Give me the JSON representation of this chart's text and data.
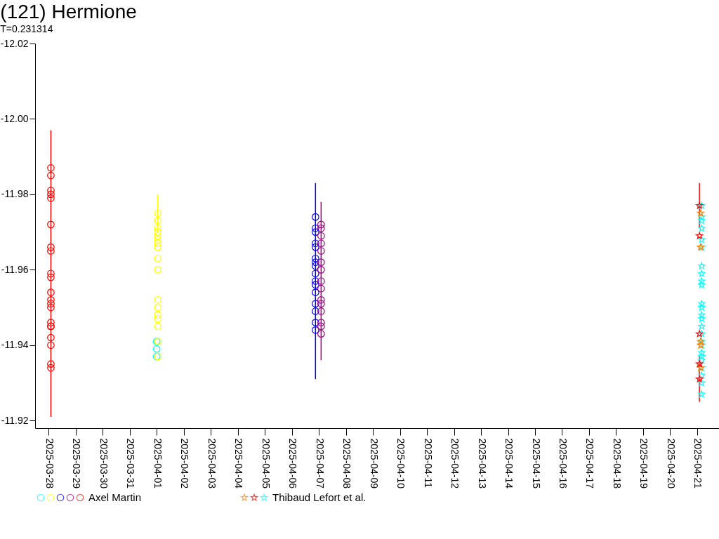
{
  "chart_data": {
    "type": "scatter",
    "title": "(121) Hermione",
    "subtitle": "T=0.231314",
    "xlim": [
      "2025-03-27T12:00",
      "2025-04-21T20:00"
    ],
    "xticks": [
      "2025-03-28",
      "2025-03-29",
      "2025-03-30",
      "2025-03-31",
      "2025-04-01",
      "2025-04-02",
      "2025-04-03",
      "2025-04-04",
      "2025-04-05",
      "2025-04-06",
      "2025-04-07",
      "2025-04-08",
      "2025-04-09",
      "2025-04-10",
      "2025-04-11",
      "2025-04-12",
      "2025-04-13",
      "2025-04-14",
      "2025-04-15",
      "2025-04-16",
      "2025-04-17",
      "2025-04-18",
      "2025-04-19",
      "2025-04-20",
      "2025-04-21"
    ],
    "ylim": [
      -11.918,
      -12.02
    ],
    "yticks": [
      -12.02,
      {
        "value": -12,
        "label": "-12.00"
      },
      -11.98,
      -11.96,
      -11.94,
      -11.92
    ],
    "grid": false,
    "legend": "bottom",
    "series": [
      {
        "name": "Axel Martin",
        "color": "#ff0000",
        "marker": "circle",
        "x": [
          "2025-03-28T02:00",
          "2025-03-28T02:00",
          "2025-03-28T02:00",
          "2025-03-28T02:00",
          "2025-03-28T02:00",
          "2025-03-28T02:00",
          "2025-03-28T02:00",
          "2025-03-28T02:00",
          "2025-03-28T02:00",
          "2025-03-28T02:00",
          "2025-03-28T02:00",
          "2025-03-28T02:00",
          "2025-03-28T02:00",
          "2025-03-28T02:00",
          "2025-03-28T02:00",
          "2025-03-28T02:00",
          "2025-03-28T02:00",
          "2025-03-28T02:00",
          "2025-03-28T02:00",
          "2025-03-28T02:00",
          "2025-03-28T02:00",
          "2025-04-01T00:00",
          "2025-04-01T00:00",
          "2025-04-01T00:00",
          "2025-04-01T01:00",
          "2025-04-01T01:00",
          "2025-04-01T01:00",
          "2025-04-01T01:00",
          "2025-04-01T01:00",
          "2025-04-01T01:00",
          "2025-04-01T01:00",
          "2025-04-01T01:00",
          "2025-04-01T01:00",
          "2025-04-01T01:00",
          "2025-04-01T01:00",
          "2025-04-01T01:00",
          "2025-04-01T01:00",
          "2025-04-01T01:00",
          "2025-04-01T01:00",
          "2025-04-01T01:00",
          "2025-04-01T01:00",
          "2025-04-06T21:00",
          "2025-04-06T21:00",
          "2025-04-06T21:00",
          "2025-04-06T21:00",
          "2025-04-06T21:00",
          "2025-04-06T21:00",
          "2025-04-06T21:00",
          "2025-04-06T21:00",
          "2025-04-06T21:00",
          "2025-04-06T21:00",
          "2025-04-06T21:00",
          "2025-04-06T21:00",
          "2025-04-06T21:00",
          "2025-04-06T21:00",
          "2025-04-06T21:00",
          "2025-04-06T21:00",
          "2025-04-07T02:00",
          "2025-04-07T02:00",
          "2025-04-07T02:00",
          "2025-04-07T02:00",
          "2025-04-07T02:00",
          "2025-04-07T02:00",
          "2025-04-07T02:00",
          "2025-04-07T02:00",
          "2025-04-07T02:00",
          "2025-04-07T02:00",
          "2025-04-07T02:00",
          "2025-04-07T02:00",
          "2025-04-07T02:00",
          "2025-04-07T02:00",
          "2025-04-07T02:00"
        ],
        "values": [
          -11.987,
          -11.985,
          -11.981,
          -11.98,
          -11.979,
          -11.972,
          -11.966,
          -11.965,
          -11.959,
          -11.958,
          -11.954,
          -11.952,
          -11.951,
          -11.95,
          -11.946,
          -11.945,
          -11.945,
          -11.942,
          -11.94,
          -11.935,
          -11.934,
          -11.941,
          -11.939,
          -11.937,
          -11.975,
          -11.973,
          -11.971,
          -11.97,
          -11.969,
          -11.968,
          -11.967,
          -11.966,
          -11.963,
          -11.96,
          -11.952,
          -11.95,
          -11.948,
          -11.947,
          -11.945,
          -11.941,
          -11.937,
          -11.974,
          -11.971,
          -11.97,
          -11.967,
          -11.966,
          -11.963,
          -11.962,
          -11.961,
          -11.959,
          -11.957,
          -11.956,
          -11.954,
          -11.951,
          -11.949,
          -11.946,
          -11.944,
          -11.972,
          -11.971,
          -11.969,
          -11.967,
          -11.965,
          -11.962,
          -11.96,
          -11.957,
          -11.955,
          -11.952,
          -11.951,
          -11.949,
          -11.946,
          -11.945,
          -11.943
        ],
        "errors": [
          null,
          null,
          null,
          null,
          null,
          null,
          null,
          null,
          0.038,
          null,
          null,
          null,
          null,
          null,
          null,
          null,
          null,
          null,
          null,
          null,
          null,
          null,
          null,
          null,
          0.005,
          null,
          null,
          null,
          null,
          null,
          null,
          null,
          null,
          null,
          null,
          null,
          null,
          null,
          null,
          null,
          null,
          null,
          null,
          null,
          null,
          null,
          null,
          null,
          null,
          null,
          0.026,
          null,
          null,
          null,
          null,
          null,
          null,
          null,
          null,
          null,
          null,
          null,
          null,
          null,
          0.021,
          null,
          null,
          null,
          null,
          null,
          null,
          null
        ],
        "colors": [
          "#ff0000",
          "#ff0000",
          "#ff0000",
          "#ff0000",
          "#ff0000",
          "#ff0000",
          "#ff0000",
          "#ff0000",
          "#ff0000",
          "#ff0000",
          "#ff0000",
          "#ff0000",
          "#ff0000",
          "#ff0000",
          "#ff0000",
          "#ff0000",
          "#ff0000",
          "#ff0000",
          "#ff0000",
          "#ff0000",
          "#ff0000",
          "#00ffff",
          "#00ffff",
          "#00ffff",
          "#ffff00",
          "#ffff00",
          "#ffff00",
          "#ffff00",
          "#ffff00",
          "#ffff00",
          "#ffff00",
          "#ffff00",
          "#ffff00",
          "#ffff00",
          "#ffff00",
          "#ffff00",
          "#ffff00",
          "#ffff00",
          "#ffff00",
          "#ffff00",
          "#ffff00",
          "#0000ff",
          "#0000ff",
          "#0000ff",
          "#0000ff",
          "#0000ff",
          "#0000ff",
          "#0000ff",
          "#0000ff",
          "#0000ff",
          "#0000ff",
          "#0000ff",
          "#0000ff",
          "#0000ff",
          "#0000ff",
          "#0000ff",
          "#0000ff",
          "#a4007f",
          "#a4007f",
          "#a4007f",
          "#a4007f",
          "#a4007f",
          "#a4007f",
          "#a4007f",
          "#a4007f",
          "#a4007f",
          "#a4007f",
          "#a4007f",
          "#a4007f",
          "#a4007f",
          "#a4007f",
          "#a4007f"
        ]
      },
      {
        "name": "Thibaud Lefort et al.",
        "color": "#00ffff",
        "marker": "star",
        "x": [
          "2025-04-21T04:00",
          "2025-04-21T04:00",
          "2025-04-21T04:00",
          "2025-04-21T04:00",
          "2025-04-21T04:00",
          "2025-04-21T04:00",
          "2025-04-21T04:00",
          "2025-04-21T04:00",
          "2025-04-21T04:00",
          "2025-04-21T04:00",
          "2025-04-21T04:00",
          "2025-04-21T04:00",
          "2025-04-21T04:00",
          "2025-04-21T04:00",
          "2025-04-21T04:00",
          "2025-04-21T04:00",
          "2025-04-21T04:00",
          "2025-04-21T04:00",
          "2025-04-21T04:00",
          "2025-04-21T04:00",
          "2025-04-21T04:00",
          "2025-04-21T04:00",
          "2025-04-21T04:00",
          "2025-04-21T04:00",
          "2025-04-21T04:00",
          "2025-04-21T03:00",
          "2025-04-21T03:00",
          "2025-04-21T03:00",
          "2025-04-21T03:00",
          "2025-04-21T03:00",
          "2025-04-21T02:00",
          "2025-04-21T02:00",
          "2025-04-21T02:00",
          "2025-04-21T02:00",
          "2025-04-21T02:00"
        ],
        "values": [
          -11.977,
          -11.974,
          -11.973,
          -11.971,
          -11.968,
          -11.966,
          -11.961,
          -11.959,
          -11.957,
          -11.956,
          -11.951,
          -11.95,
          -11.948,
          -11.947,
          -11.945,
          -11.943,
          -11.941,
          -11.94,
          -11.938,
          -11.937,
          -11.936,
          -11.934,
          -11.932,
          -11.93,
          -11.927,
          -11.975,
          -11.966,
          -11.941,
          -11.94,
          -11.934,
          -11.977,
          -11.969,
          -11.943,
          -11.935,
          -11.931
        ],
        "errors": [
          null,
          null,
          null,
          null,
          null,
          null,
          null,
          null,
          null,
          null,
          null,
          null,
          null,
          null,
          null,
          null,
          null,
          null,
          null,
          null,
          null,
          null,
          null,
          null,
          null,
          null,
          null,
          null,
          null,
          null,
          0.006,
          null,
          null,
          null,
          0.006
        ],
        "colors": [
          "#00ffff",
          "#00ffff",
          "#00ffff",
          "#00ffff",
          "#00ffff",
          "#00ffff",
          "#00ffff",
          "#00ffff",
          "#00ffff",
          "#00ffff",
          "#00ffff",
          "#00ffff",
          "#00ffff",
          "#00ffff",
          "#00ffff",
          "#00ffff",
          "#00ffff",
          "#00ffff",
          "#00ffff",
          "#00ffff",
          "#00ffff",
          "#00ffff",
          "#00ffff",
          "#00ffff",
          "#00ffff",
          "#ff8000",
          "#ff8000",
          "#ff8000",
          "#ff8000",
          "#ff8000",
          "#ff0000",
          "#ff0000",
          "#ff0000",
          "#ff0000",
          "#ff0000"
        ]
      }
    ]
  }
}
